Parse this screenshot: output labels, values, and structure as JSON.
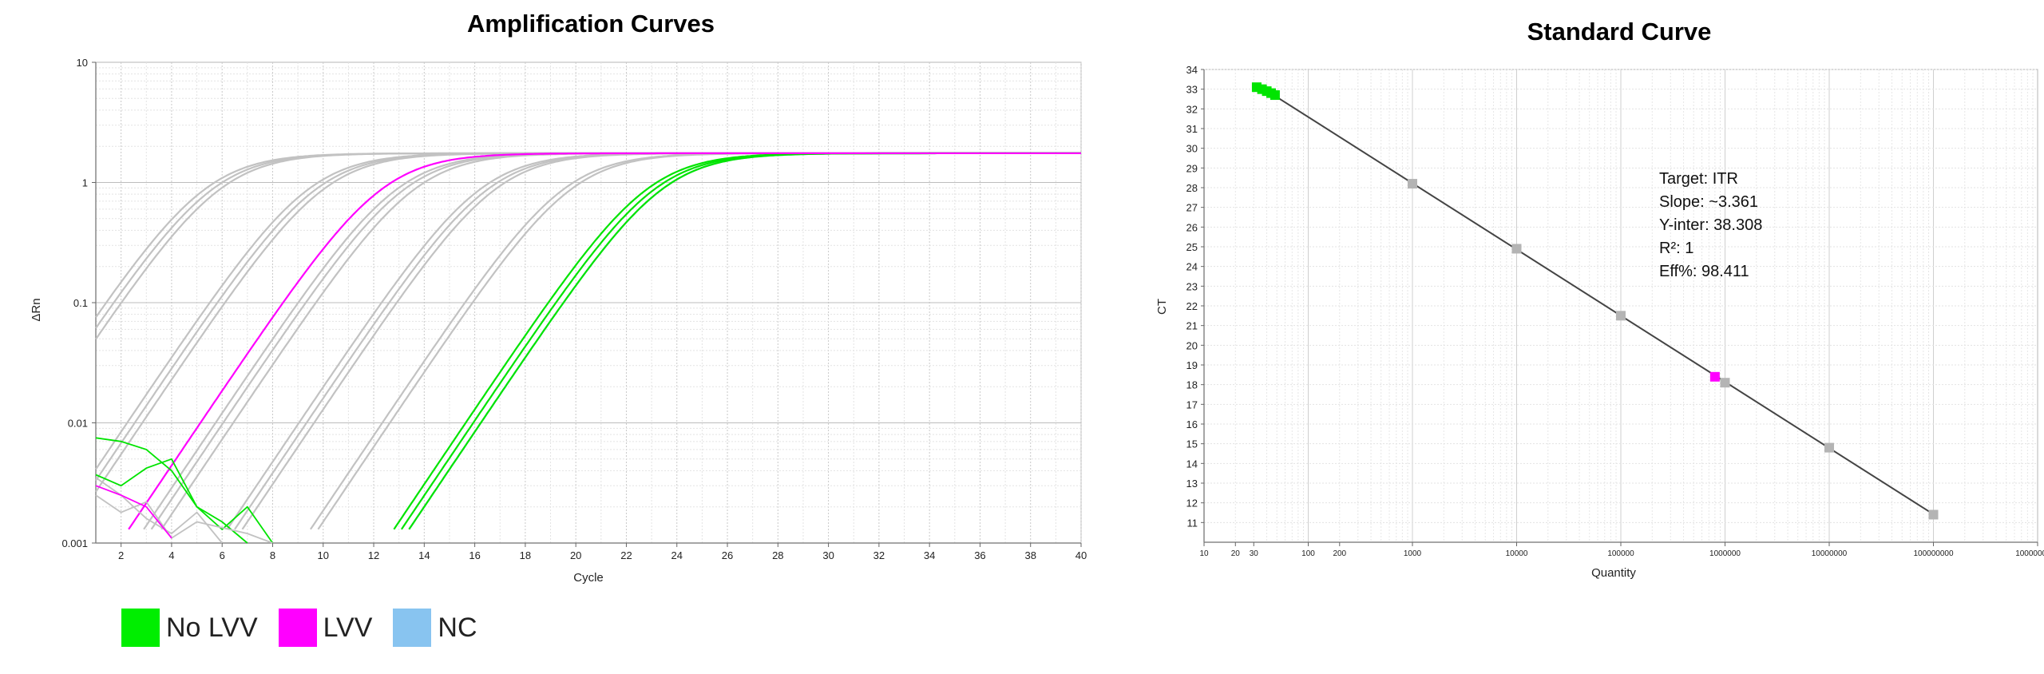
{
  "chart_data": [
    {
      "type": "line",
      "title": "Amplification Curves",
      "xlabel": "Cycle",
      "ylabel": "ΔRn",
      "yscale": "log",
      "xlim": [
        1,
        40
      ],
      "ylim": [
        0.001,
        10
      ],
      "x_ticks": [
        2,
        4,
        6,
        8,
        10,
        12,
        14,
        16,
        18,
        20,
        22,
        24,
        26,
        28,
        30,
        32,
        34,
        36,
        38,
        40
      ],
      "y_ticks": [
        {
          "v": 10,
          "label": "10"
        },
        {
          "v": 1,
          "label": "1"
        },
        {
          "v": 0.1,
          "label": "0.1"
        },
        {
          "v": 0.01,
          "label": "0.01"
        },
        {
          "v": 0.001,
          "label": "0.001"
        }
      ],
      "grid": true,
      "plateau": 1.75,
      "series": [
        {
          "group": "gray",
          "ct": 11.5
        },
        {
          "group": "gray",
          "ct": 11.8
        },
        {
          "group": "gray",
          "ct": 12.1
        },
        {
          "group": "gray",
          "ct": 15.6
        },
        {
          "group": "gray",
          "ct": 15.9
        },
        {
          "group": "gray",
          "ct": 16.2
        },
        {
          "group": "LVV",
          "ct": 18.5
        },
        {
          "group": "gray",
          "ct": 19.1
        },
        {
          "group": "gray",
          "ct": 19.4
        },
        {
          "group": "gray",
          "ct": 19.8
        },
        {
          "group": "gray",
          "ct": 22.4
        },
        {
          "group": "gray",
          "ct": 22.7
        },
        {
          "group": "gray",
          "ct": 23.0
        },
        {
          "group": "gray",
          "ct": 25.7
        },
        {
          "group": "gray",
          "ct": 26.0
        },
        {
          "group": "NC",
          "ct": 29.6
        },
        {
          "group": "No LVV",
          "ct": 29.0
        },
        {
          "group": "No LVV",
          "ct": 29.3
        },
        {
          "group": "No LVV",
          "ct": 29.6
        }
      ]
    },
    {
      "type": "scatter",
      "title": "Standard Curve",
      "xlabel": "Quantity",
      "ylabel": "CT",
      "xscale": "log",
      "xlim": [
        10,
        1000000000
      ],
      "ylim": [
        10,
        34
      ],
      "x_ticks": [
        {
          "v": 10,
          "label": "10"
        },
        {
          "v": 20,
          "label": "20"
        },
        {
          "v": 30,
          "label": "30"
        },
        {
          "v": 100,
          "label": "100"
        },
        {
          "v": 200,
          "label": "200"
        },
        {
          "v": 1000,
          "label": "1000"
        },
        {
          "v": 10000,
          "label": "10000"
        },
        {
          "v": 100000,
          "label": "100000"
        },
        {
          "v": 1000000,
          "label": "1000000"
        },
        {
          "v": 10000000,
          "label": "10000000"
        },
        {
          "v": 100000000,
          "label": "100000000"
        },
        {
          "v": 1000000000,
          "label": "1000000000"
        }
      ],
      "y_ticks": [
        11,
        12,
        13,
        14,
        15,
        16,
        17,
        18,
        19,
        20,
        21,
        22,
        23,
        24,
        25,
        26,
        27,
        28,
        29,
        30,
        31,
        32,
        33,
        34
      ],
      "grid": true,
      "fit": {
        "slope": -3.361,
        "intercept": 38.308
      },
      "points": [
        {
          "group": "standard",
          "x": 1000,
          "y": 28.2
        },
        {
          "group": "standard",
          "x": 10000,
          "y": 24.9
        },
        {
          "group": "standard",
          "x": 100000,
          "y": 21.5
        },
        {
          "group": "standard",
          "x": 1000000,
          "y": 18.1
        },
        {
          "group": "standard",
          "x": 10000000,
          "y": 14.8
        },
        {
          "group": "standard",
          "x": 100000000,
          "y": 11.4
        },
        {
          "group": "LVV",
          "x": 800000,
          "y": 18.4
        },
        {
          "group": "No LVV",
          "x": 32,
          "y": 33.1
        },
        {
          "group": "No LVV",
          "x": 36,
          "y": 33.0
        },
        {
          "group": "No LVV",
          "x": 40,
          "y": 32.9
        },
        {
          "group": "No LVV",
          "x": 44,
          "y": 32.8
        },
        {
          "group": "No LVV",
          "x": 48,
          "y": 32.7
        }
      ],
      "annotation": [
        "Target: ITR",
        "Slope: ~3.361",
        "Y-inter: 38.308",
        "R²: 1",
        "Eff%: 98.411"
      ]
    }
  ],
  "legend": [
    {
      "label": "No LVV",
      "color": "#00ee00"
    },
    {
      "label": "LVV",
      "color": "#ff00ff"
    },
    {
      "label": "NC",
      "color": "#88c4f0"
    }
  ],
  "colors": {
    "gray": "#c2c2c2",
    "LVV": "#ff00ff",
    "NC": "#88c4f0",
    "No LVV": "#00e400",
    "standard": "#b4b4b4",
    "fit": "#444444"
  }
}
